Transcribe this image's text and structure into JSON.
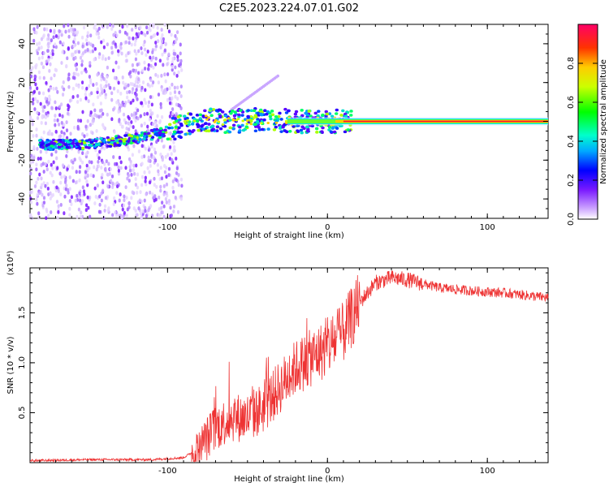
{
  "chart_data": [
    {
      "type": "heatmap",
      "title": "C2E5.2023.224.07.01.G02",
      "xlabel": "Height of straight line (km)",
      "ylabel": "Frequency (Hz)",
      "xlim": [
        -186,
        138
      ],
      "ylim": [
        -50,
        50
      ],
      "xticks": [
        -100,
        0,
        100
      ],
      "yticks": [
        -40,
        -20,
        0,
        20,
        40
      ],
      "colorbar": {
        "label": "Normalized spectral amplitude",
        "range": [
          0,
          1
        ],
        "ticks": [
          "0.0",
          "0.2",
          "0.4",
          "0.6",
          "0.8"
        ]
      },
      "ridge": [
        {
          "x": -175,
          "y": -12
        },
        {
          "x": -165,
          "y": -12
        },
        {
          "x": -150,
          "y": -12
        },
        {
          "x": -140,
          "y": -11
        },
        {
          "x": -120,
          "y": -9
        },
        {
          "x": -100,
          "y": -5
        },
        {
          "x": -80,
          "y": 1
        },
        {
          "x": -60,
          "y": 0
        },
        {
          "x": -40,
          "y": 1
        },
        {
          "x": -20,
          "y": 0
        },
        {
          "x": 0,
          "y": 0
        },
        {
          "x": 138,
          "y": 0
        }
      ]
    },
    {
      "type": "line",
      "xlabel": "Height of straight line (km)",
      "ylabel": "SNR (10 * v/v)",
      "scale_label": "(x10⁴)",
      "xlim": [
        -186,
        138
      ],
      "ylim": [
        0,
        1.95
      ],
      "xticks": [
        -100,
        0,
        100
      ],
      "yticks": [
        "0.5",
        "1.0",
        "1.5"
      ],
      "series": [
        {
          "name": "SNR",
          "color": "#ee3333",
          "points": [
            {
              "x": -186,
              "y": 0.02
            },
            {
              "x": -150,
              "y": 0.03
            },
            {
              "x": -110,
              "y": 0.03
            },
            {
              "x": -90,
              "y": 0.05
            },
            {
              "x": -80,
              "y": 0.15
            },
            {
              "x": -70,
              "y": 0.35
            },
            {
              "x": -60,
              "y": 0.45
            },
            {
              "x": -50,
              "y": 0.45
            },
            {
              "x": -40,
              "y": 0.55
            },
            {
              "x": -30,
              "y": 0.75
            },
            {
              "x": -20,
              "y": 0.95
            },
            {
              "x": -10,
              "y": 1.05
            },
            {
              "x": 0,
              "y": 1.15
            },
            {
              "x": 10,
              "y": 1.3
            },
            {
              "x": 20,
              "y": 1.6
            },
            {
              "x": 30,
              "y": 1.8
            },
            {
              "x": 40,
              "y": 1.85
            },
            {
              "x": 50,
              "y": 1.83
            },
            {
              "x": 70,
              "y": 1.75
            },
            {
              "x": 90,
              "y": 1.72
            },
            {
              "x": 110,
              "y": 1.7
            },
            {
              "x": 138,
              "y": 1.65
            }
          ]
        }
      ]
    }
  ]
}
